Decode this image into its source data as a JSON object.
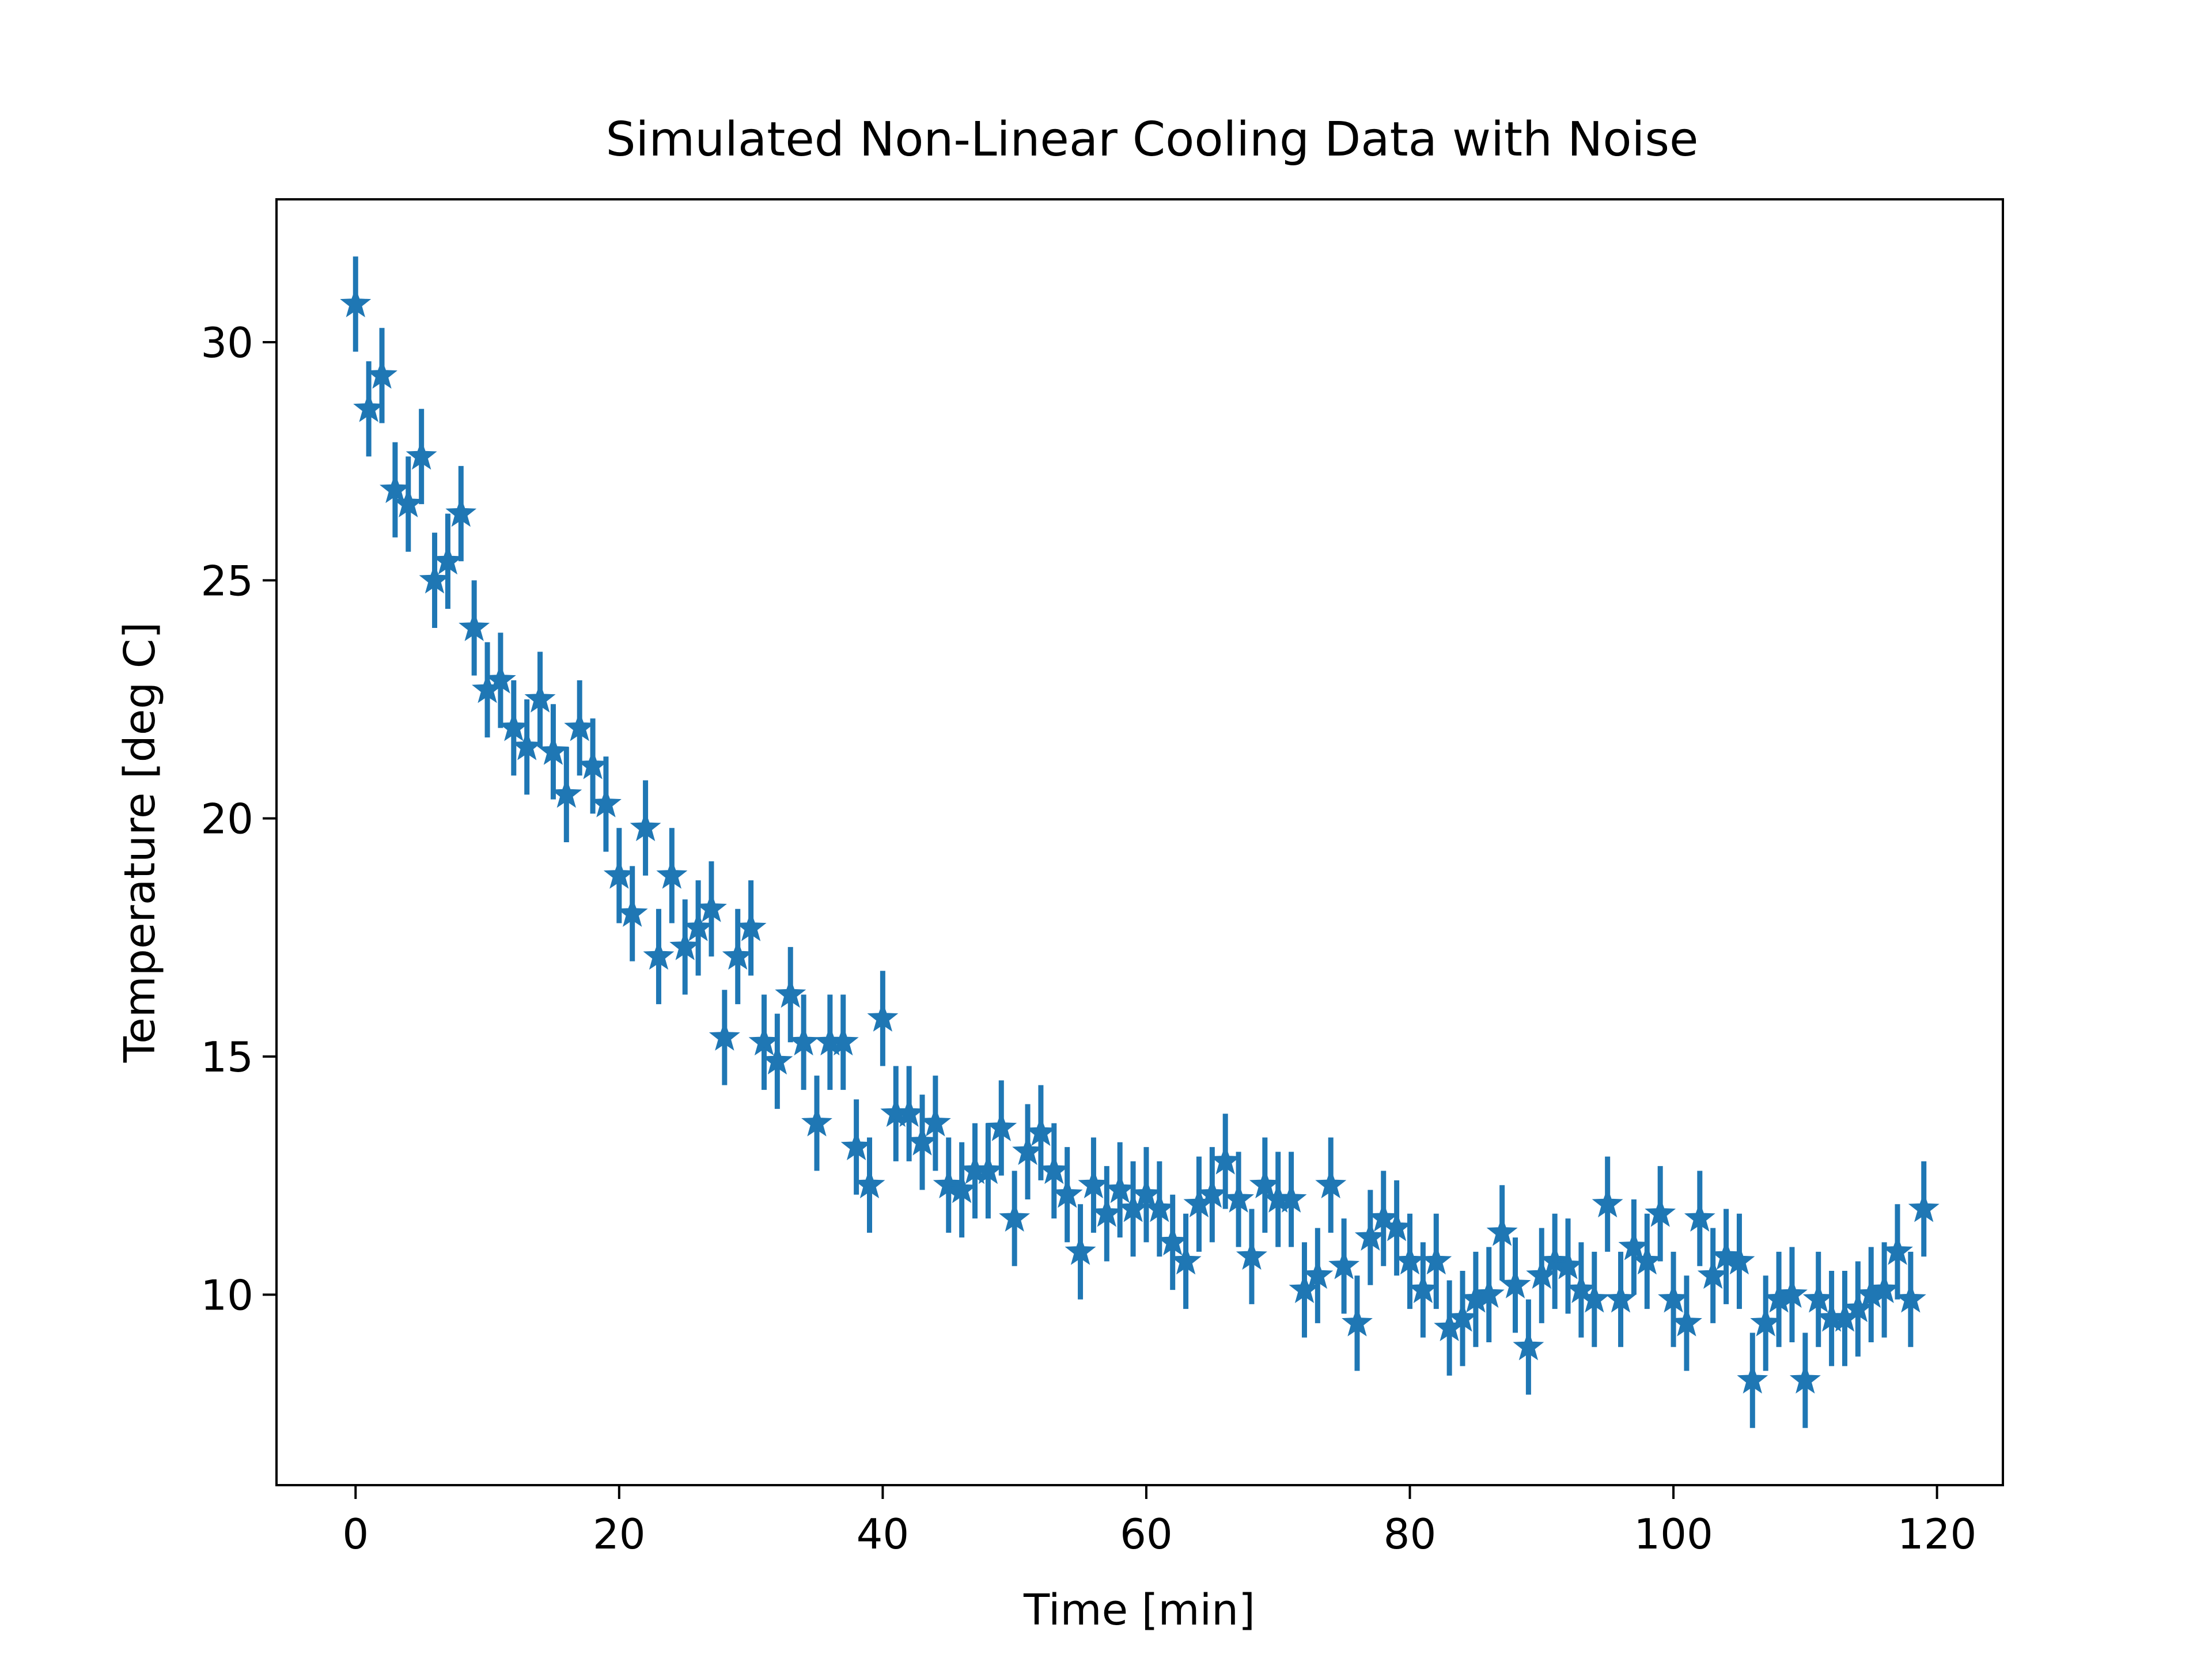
{
  "chart_data": {
    "type": "scatter",
    "title": "Simulated Non-Linear Cooling Data with Noise",
    "xlabel": "Time [min]",
    "ylabel": "Temperature [deg C]",
    "xlim": [
      -6,
      125
    ],
    "ylim": [
      6,
      33
    ],
    "xticks": [
      0,
      20,
      40,
      60,
      80,
      100,
      120
    ],
    "yticks": [
      10,
      15,
      20,
      25,
      30
    ],
    "grid": false,
    "marker": "star",
    "color": "#1f77b4",
    "error": 1.0,
    "series": [
      {
        "x": [
          0,
          1,
          2,
          3,
          4,
          5,
          6,
          7,
          8,
          9,
          10,
          11,
          12,
          13,
          14,
          15,
          16,
          17,
          18,
          19,
          20,
          21,
          22,
          23,
          24,
          25,
          26,
          27,
          28,
          29,
          30,
          31,
          32,
          33,
          34,
          35,
          36,
          37,
          38,
          39,
          40,
          41,
          42,
          43,
          44,
          45,
          46,
          47,
          48,
          49,
          50,
          51,
          52,
          53,
          54,
          55,
          56,
          57,
          58,
          59,
          60,
          61,
          62,
          63,
          64,
          65,
          66,
          67,
          68,
          69,
          70,
          71,
          72,
          73,
          74,
          75,
          76,
          77,
          78,
          79,
          80,
          81,
          82,
          83,
          84,
          85,
          86,
          87,
          88,
          89,
          90,
          91,
          92,
          93,
          94,
          95,
          96,
          97,
          98,
          99,
          100,
          101,
          102,
          103,
          104,
          105,
          106,
          107,
          108,
          109,
          110,
          111,
          112,
          113,
          114,
          115,
          116,
          117,
          118,
          119
        ],
        "y": [
          30.8,
          28.6,
          29.3,
          26.9,
          26.6,
          27.6,
          25.0,
          25.4,
          26.4,
          24.0,
          22.7,
          22.9,
          21.9,
          21.5,
          22.5,
          21.4,
          20.5,
          21.9,
          21.1,
          20.3,
          18.8,
          18.0,
          19.8,
          17.1,
          18.8,
          17.3,
          17.7,
          18.1,
          15.4,
          17.1,
          17.7,
          15.3,
          14.9,
          16.3,
          15.3,
          13.6,
          15.3,
          15.3,
          13.1,
          12.3,
          15.8,
          13.8,
          13.8,
          13.2,
          13.6,
          12.3,
          12.2,
          12.6,
          12.6,
          13.5,
          11.6,
          13.0,
          13.4,
          12.6,
          12.1,
          10.9,
          12.3,
          11.7,
          12.2,
          11.8,
          12.1,
          11.8,
          11.1,
          10.7,
          11.9,
          12.1,
          12.8,
          12.0,
          10.8,
          12.3,
          12.0,
          12.0,
          10.1,
          10.4,
          12.3,
          10.6,
          9.4,
          11.2,
          11.6,
          11.4,
          10.7,
          10.1,
          10.7,
          9.3,
          9.5,
          9.9,
          10.0,
          11.3,
          10.2,
          8.9,
          10.4,
          10.7,
          10.6,
          10.1,
          9.9,
          11.9,
          9.9,
          11.0,
          10.7,
          11.7,
          9.9,
          9.4,
          11.6,
          10.4,
          10.8,
          10.7,
          8.2,
          9.4,
          9.9,
          10.0,
          8.2,
          9.9,
          9.5,
          9.5,
          9.7,
          10.0,
          10.1,
          10.9,
          9.9,
          11.8
        ]
      }
    ]
  }
}
